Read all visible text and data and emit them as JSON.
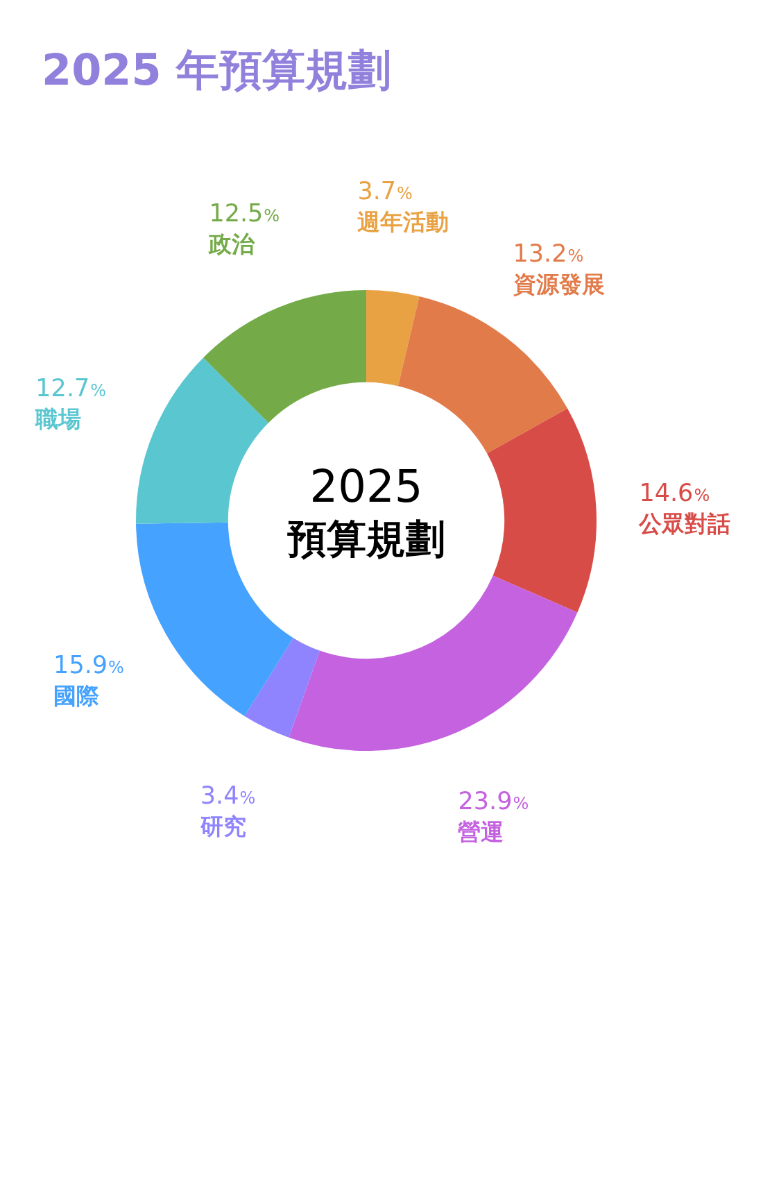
{
  "chart_data": {
    "type": "donut",
    "title": "2025 年預算規劃",
    "categories": [
      "週年活動",
      "資源發展",
      "公眾對話",
      "營運",
      "研究",
      "國際",
      "職場",
      "政治"
    ],
    "values": [
      3.7,
      13.2,
      14.6,
      23.9,
      3.4,
      15.9,
      12.7,
      12.5
    ],
    "value_labels": [
      "3.7%",
      "13.2%",
      "14.6%",
      "23.9%",
      "3.4%",
      "15.9%",
      "12.7%",
      "12.5%"
    ],
    "colors": [
      "#e9a243",
      "#e27b4a",
      "#d84c48",
      "#c462e0",
      "#8f84fe",
      "#46a2ff",
      "#5ac6d0",
      "#74ab48"
    ],
    "annotations": [
      "2025",
      "預算規劃"
    ],
    "legend": false
  }
}
